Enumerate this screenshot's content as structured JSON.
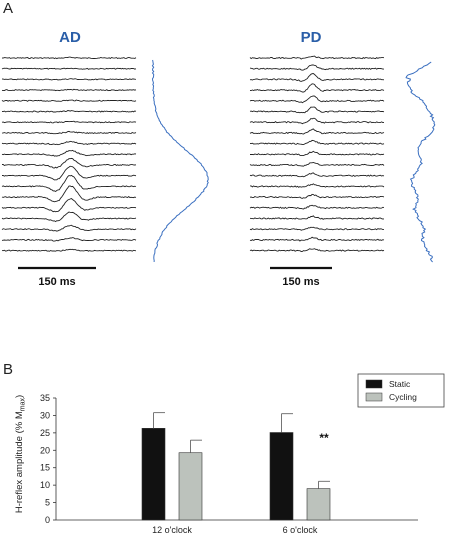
{
  "panel_a": {
    "letter": "A",
    "groups": [
      {
        "title": "AD",
        "scale_label": "150 ms",
        "trace_count": 19,
        "profile_color": "#3a6fc0"
      },
      {
        "title": "PD",
        "scale_label": "150 ms",
        "trace_count": 19,
        "profile_color": "#3a6fc0"
      }
    ]
  },
  "panel_b": {
    "letter": "B",
    "sig_marker": "**"
  },
  "colors": {
    "trace": "#222222",
    "profile": "#3a6fc0",
    "static_bar": "#111111",
    "cycling_bar": "#bcc2bc"
  },
  "chart_data": {
    "type": "bar",
    "categories": [
      "12 o'clock",
      "6 o'clock"
    ],
    "series": [
      {
        "name": "Static",
        "values": [
          26.3,
          25.1
        ],
        "errors": [
          4.5,
          5.4
        ],
        "color": "#111111"
      },
      {
        "name": "Cycling",
        "values": [
          19.3,
          9.0
        ],
        "errors": [
          3.6,
          2.1
        ],
        "color": "#bcc2bc"
      }
    ],
    "ylabel": "H-reflex amplitude (% M",
    "ylabel_sub": "max",
    "ylabel_suffix": ")",
    "ylim": [
      0,
      35
    ],
    "yticks": [
      0,
      5,
      10,
      15,
      20,
      25,
      30,
      35
    ],
    "legend_position": "top-right",
    "annotations": [
      {
        "text": "**",
        "category": "6 o'clock"
      }
    ]
  }
}
